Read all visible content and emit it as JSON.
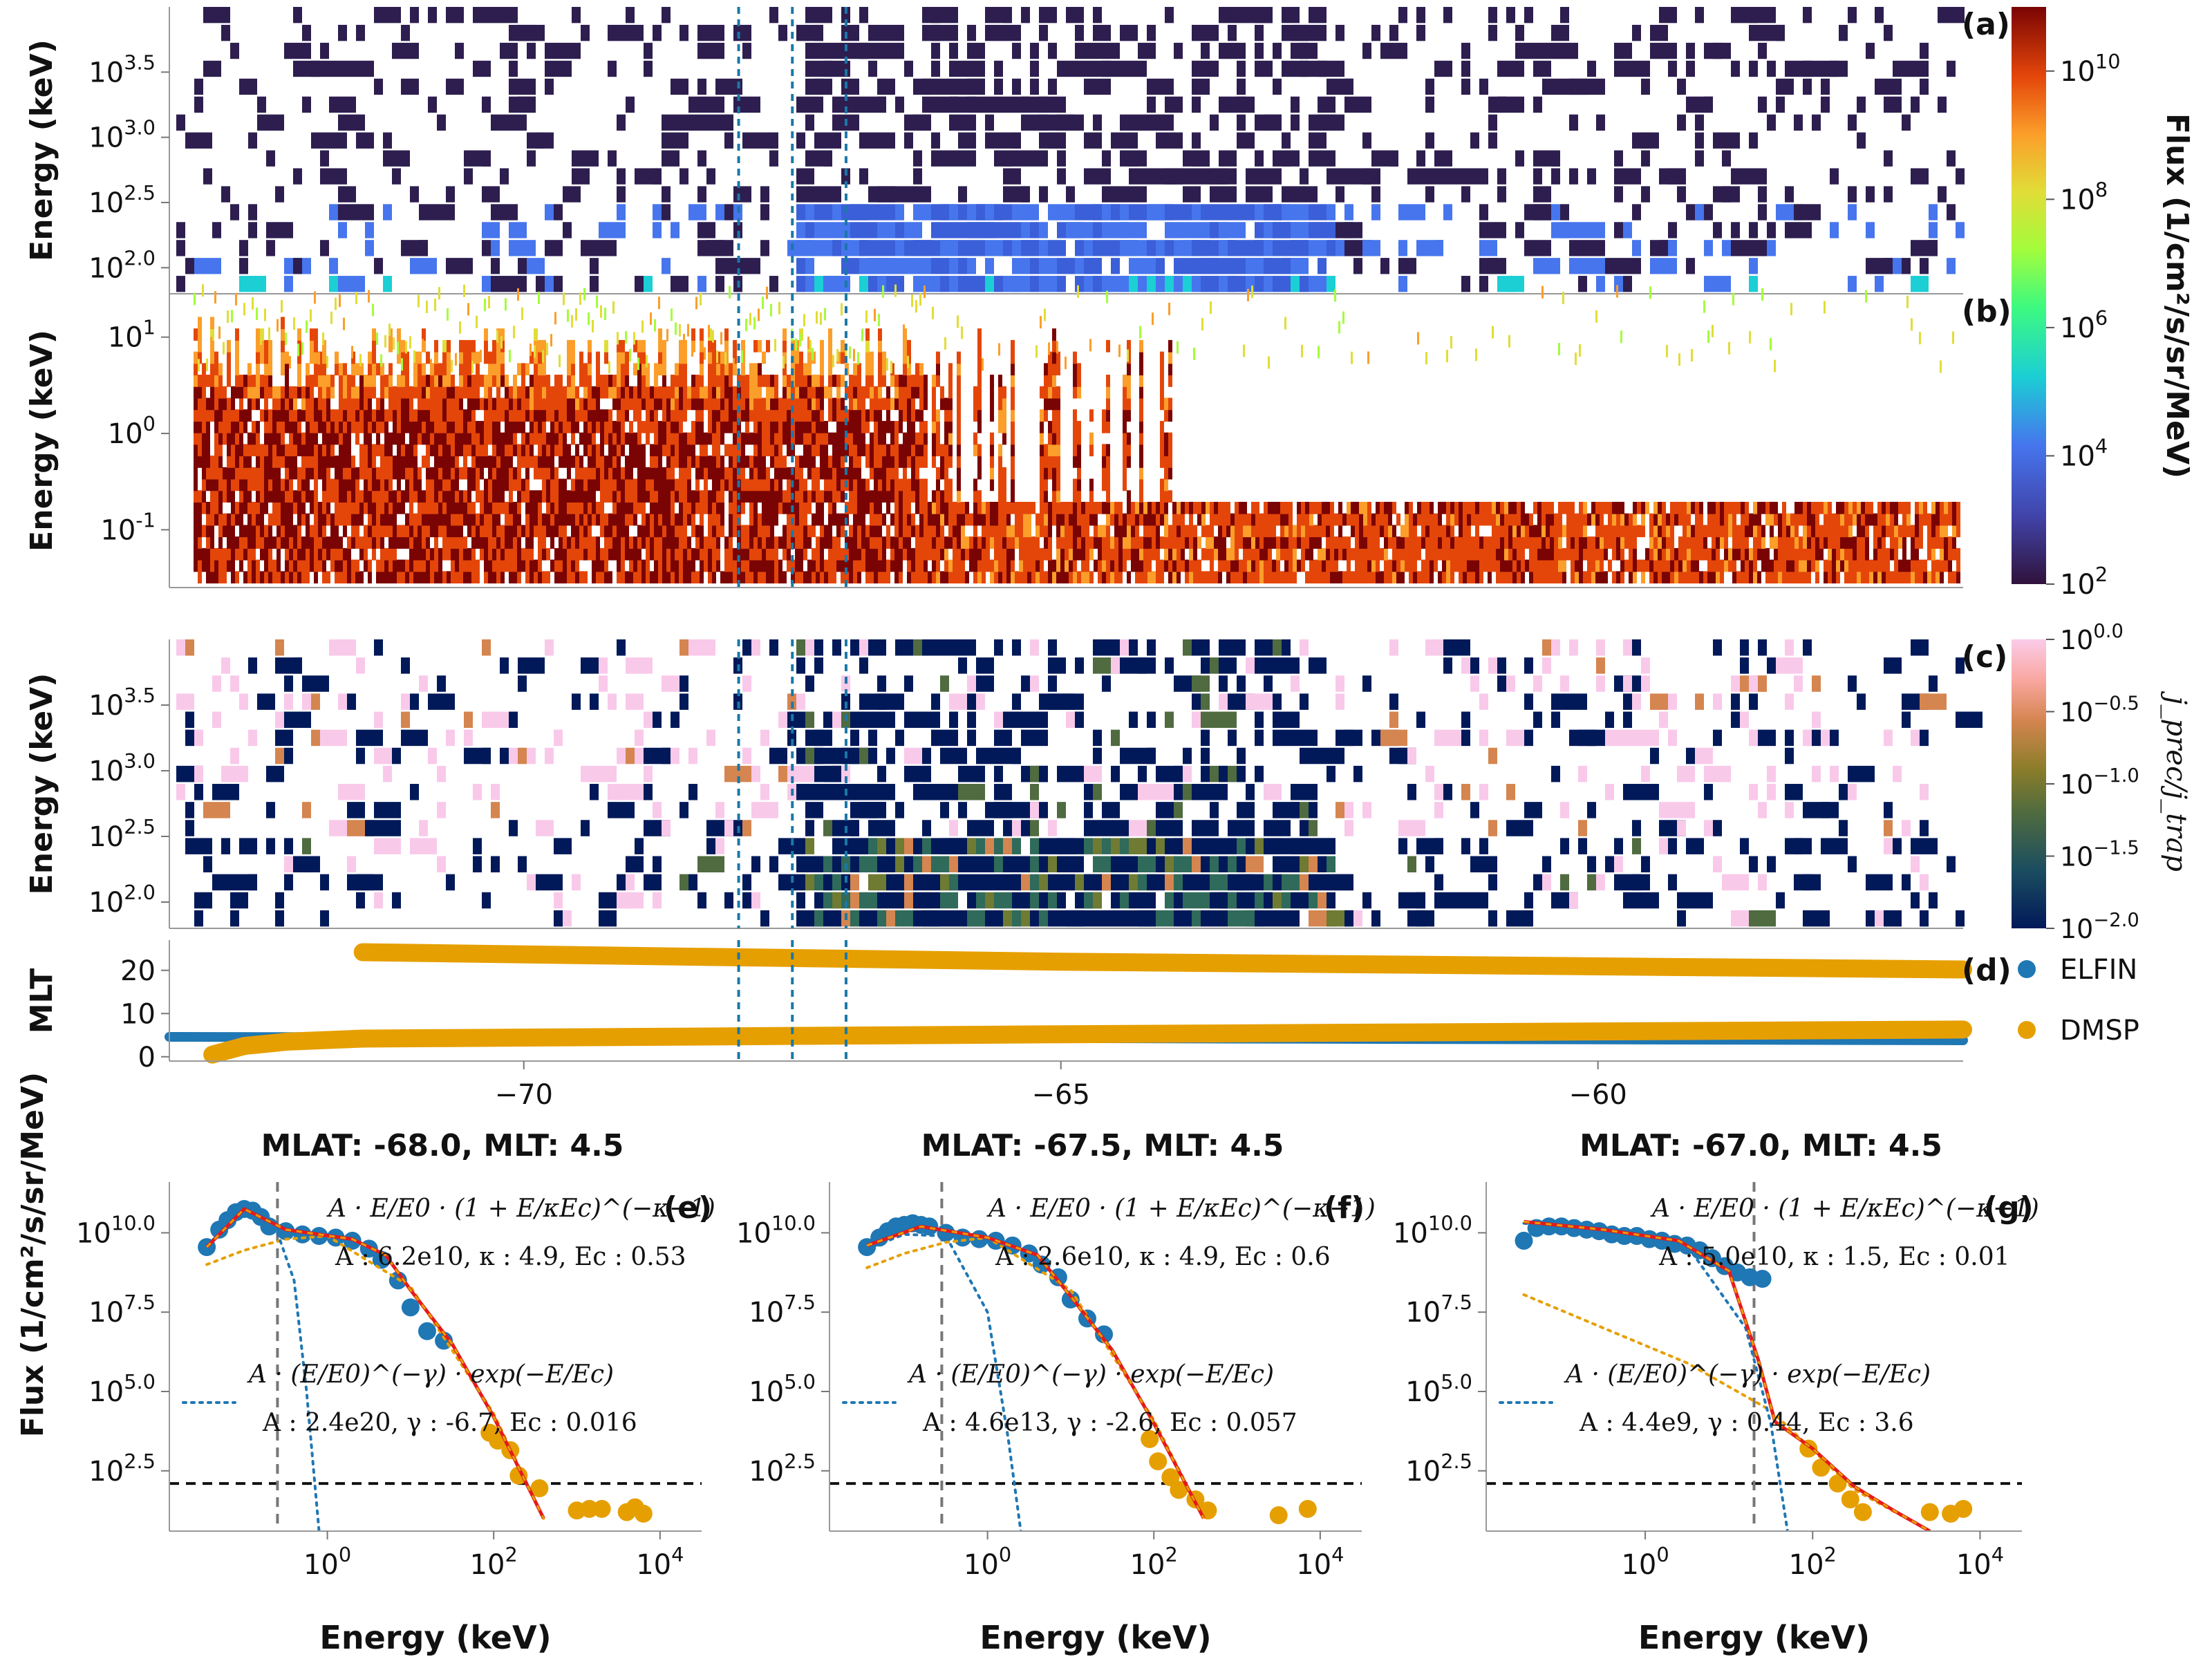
{
  "spectrogram_panels": [
    {
      "id": "a",
      "panel_label": "(a)",
      "ylabel": "Energy (keV)",
      "ytick_labels": [
        "10^3.5",
        "10^3.0",
        "10^2.5",
        "10^2.0"
      ],
      "ytick_values": [
        3.5,
        3.0,
        2.5,
        2.0
      ],
      "ylim_log10": [
        1.8,
        4.0
      ]
    },
    {
      "id": "b",
      "panel_label": "(b)",
      "ylabel": "Energy (keV)",
      "ytick_labels": [
        "10^1",
        "10^0",
        "10^-1"
      ],
      "ytick_values": [
        1,
        0,
        -1
      ],
      "ylim_log10": [
        -1.6,
        1.45
      ]
    },
    {
      "id": "c",
      "panel_label": "(c)",
      "ylabel": "Energy (keV)",
      "ytick_labels": [
        "10^3.5",
        "10^3.0",
        "10^2.5",
        "10^2.0"
      ],
      "ytick_values": [
        3.5,
        3.0,
        2.5,
        2.0
      ],
      "ylim_log10": [
        1.8,
        4.0
      ]
    }
  ],
  "colorbar_flux": {
    "label": "Flux (1/cm²/s/sr/MeV)",
    "tick_labels": [
      "10^10",
      "10^8",
      "10^6",
      "10^4",
      "10^2"
    ],
    "tick_exponents": [
      10,
      8,
      6,
      4,
      2
    ],
    "range_exponents": [
      2,
      11
    ],
    "colormap": "turbo"
  },
  "colorbar_ratio": {
    "label": "j_prec/j_trap",
    "tick_labels": [
      "10^0.0",
      "10^-0.5",
      "10^-1.0",
      "10^-1.5",
      "10^-2.0"
    ],
    "tick_exponents": [
      0,
      -0.5,
      -1.0,
      -1.5,
      -2.0
    ],
    "range_exponents": [
      -2,
      0
    ],
    "colormap": "batlow"
  },
  "mlt_panel": {
    "panel_label": "(d)",
    "ylabel": "MLT",
    "ytick_labels": [
      "20",
      "10",
      "0"
    ],
    "ytick_values": [
      20,
      10,
      0
    ],
    "ylim": [
      -1,
      27
    ],
    "legend": [
      "ELFIN",
      "DMSP"
    ]
  },
  "shared_x": {
    "tick_labels": [
      "-70",
      "-65",
      "-60"
    ],
    "tick_values": [
      -70,
      -65,
      -60
    ],
    "xlim": [
      -73.3,
      -56.6
    ]
  },
  "marked_mlat": [
    -68.0,
    -67.5,
    -67.0
  ],
  "fit_panels": [
    {
      "title": "MLAT: -68.0, MLT: 4.5",
      "panel_label": "(e)",
      "kappa_formula": "A · E/E0 · (1 + E/κEc)^(−κ−1)",
      "kappa_params": "A : 6.2e10, κ : 4.9, Ec : 0.53",
      "power_formula": "A · (E/E0)^(−γ) · exp(−E/Ec)",
      "power_params": "A : 2.4e20, γ : -6.7, Ec : 0.016"
    },
    {
      "title": "MLAT: -67.5, MLT: 4.5",
      "panel_label": "(f)",
      "kappa_formula": "A · E/E0 · (1 + E/κEc)^(−κ−1)",
      "kappa_params": "A : 2.6e10, κ : 4.9, Ec : 0.6",
      "power_formula": "A · (E/E0)^(−γ) · exp(−E/Ec)",
      "power_params": "A : 4.6e13, γ : -2.6, Ec : 0.057"
    },
    {
      "title": "MLAT: -67.0, MLT: 4.5",
      "panel_label": "(g)",
      "kappa_formula": "A · E/E0 · (1 + E/κEc)^(−κ−1)",
      "kappa_params": "A : 5.0e10, κ : 1.5, Ec : 0.01",
      "power_formula": "A · (E/E0)^(−γ) · exp(−E/Ec)",
      "power_params": "A : 4.4e9, γ : 0.44, Ec : 3.6"
    }
  ],
  "fit_axes": {
    "ylabel": "Flux (1/cm²/s/sr/MeV)",
    "xlabel": "Energy (keV)",
    "ytick_labels": [
      "10^10.0",
      "10^7.5",
      "10^5.0",
      "10^2.5"
    ],
    "ytick_values": [
      10.0,
      7.5,
      5.0,
      2.5
    ],
    "xtick_labels": [
      "10^0",
      "10^2",
      "10^4"
    ],
    "xtick_values": [
      0,
      2,
      4
    ],
    "xlim_log10": [
      -1.9,
      4.5
    ],
    "ylim_log10": [
      0.6,
      11.6
    ]
  },
  "chart_data": [
    {
      "type": "heatmap",
      "panel": "(a)",
      "description": "ELFIN precipitating electron flux spectrogram",
      "x_range": [
        -73.3,
        -56.6
      ],
      "y_range_log10_keV": [
        1.8,
        4.0
      ],
      "color": "flux 1e2-1e11, mostly 1e2-1e4"
    },
    {
      "type": "heatmap",
      "panel": "(b)",
      "description": "DMSP electron flux spectrogram",
      "x_range": [
        -73.3,
        -56.6
      ],
      "y_range_log10_keV": [
        -1.6,
        1.45
      ],
      "color": "flux up to ~1e10 below 10 keV"
    },
    {
      "type": "heatmap",
      "panel": "(c)",
      "description": "precipitating to trapped flux ratio",
      "x_range": [
        -73.3,
        -56.6
      ],
      "y_range_log10_keV": [
        1.8,
        4.0
      ],
      "color": "ratio 1e-2 to 1e0"
    },
    {
      "type": "scatter",
      "panel": "(d)",
      "x_range": [
        -73.3,
        -56.6
      ],
      "series": [
        {
          "name": "ELFIN",
          "color": "#1f77b4",
          "x": [
            -73.3,
            -65,
            -56.6
          ],
          "y": [
            4.6,
            4.3,
            3.8
          ]
        },
        {
          "name": "DMSP",
          "color": "#e69f00",
          "x": [
            -72.9,
            -72.6,
            -72.2,
            -71.5,
            -65,
            -56.6
          ],
          "y": [
            0.5,
            2.5,
            3.5,
            4.2,
            5.2,
            6.3
          ]
        },
        {
          "name": "DMSP",
          "color": "#e69f00",
          "x": [
            -71.5,
            -65,
            -56.6
          ],
          "y": [
            24.2,
            22.0,
            20.2
          ]
        }
      ]
    },
    {
      "type": "scatter",
      "panel": "(e)",
      "x_log10_keV": [
        -1.45,
        -1.3,
        -1.2,
        -1.1,
        -1.0,
        -0.9,
        -0.8,
        -0.7,
        -0.5,
        -0.3,
        -0.1,
        0.1,
        0.3,
        0.5,
        0.65,
        0.85,
        1.0,
        1.2,
        1.4,
        1.95,
        2.05,
        2.2,
        2.3,
        2.55,
        3.0,
        3.15,
        3.3,
        3.6,
        3.7,
        3.8
      ],
      "y_log10_flux": [
        9.55,
        10.1,
        10.4,
        10.65,
        10.75,
        10.7,
        10.5,
        10.2,
        10.05,
        9.95,
        9.9,
        9.85,
        9.75,
        9.5,
        9.15,
        8.5,
        7.65,
        6.9,
        6.6,
        3.7,
        3.45,
        3.15,
        2.35,
        1.95,
        1.25,
        1.3,
        1.3,
        1.2,
        1.35,
        1.15
      ],
      "fit_total_log10": [
        [
          -1.45,
          9.55
        ],
        [
          -1.0,
          10.75
        ],
        [
          -0.5,
          10.1
        ],
        [
          0.3,
          9.8
        ],
        [
          0.7,
          9.3
        ],
        [
          1.0,
          8.2
        ],
        [
          1.5,
          6.5
        ],
        [
          2.0,
          4.2
        ],
        [
          2.6,
          1.0
        ]
      ],
      "kappa_component_log10": [
        [
          -1.45,
          9.0
        ],
        [
          -1.0,
          9.45
        ],
        [
          -0.5,
          9.8
        ],
        [
          0.0,
          9.9
        ],
        [
          1.0,
          8.3
        ],
        [
          2.0,
          4.3
        ],
        [
          2.6,
          1.0
        ]
      ],
      "powerlaw_component_log10": [
        [
          -1.45,
          9.6
        ],
        [
          -1.0,
          10.7
        ],
        [
          -0.6,
          10.0
        ],
        [
          -0.4,
          8.5
        ],
        [
          -0.25,
          5.0
        ],
        [
          -0.1,
          0.6
        ]
      ],
      "E0_log10": -0.6,
      "threshold_log10": 2.1
    },
    {
      "type": "scatter",
      "panel": "(f)",
      "x_log10_keV": [
        -1.45,
        -1.3,
        -1.2,
        -1.1,
        -1.0,
        -0.9,
        -0.8,
        -0.7,
        -0.5,
        -0.3,
        -0.1,
        0.1,
        0.3,
        0.5,
        0.65,
        0.85,
        1.0,
        1.2,
        1.4,
        1.95,
        2.05,
        2.2,
        2.3,
        2.5,
        2.65,
        3.5,
        3.85
      ],
      "y_log10_flux": [
        9.55,
        9.85,
        10.05,
        10.2,
        10.25,
        10.3,
        10.25,
        10.2,
        10.0,
        9.85,
        9.8,
        9.75,
        9.6,
        9.35,
        9.0,
        8.6,
        7.9,
        7.3,
        6.8,
        3.5,
        2.8,
        2.3,
        1.9,
        1.6,
        1.25,
        1.1,
        1.3
      ],
      "fit_total_log10": [
        [
          -1.45,
          9.6
        ],
        [
          -0.8,
          10.2
        ],
        [
          0.0,
          9.85
        ],
        [
          0.6,
          9.3
        ],
        [
          1.0,
          8.0
        ],
        [
          1.5,
          6.3
        ],
        [
          2.0,
          4.0
        ],
        [
          2.6,
          1.0
        ]
      ],
      "kappa_component_log10": [
        [
          -1.45,
          8.9
        ],
        [
          -1.0,
          9.35
        ],
        [
          -0.5,
          9.7
        ],
        [
          0.0,
          9.85
        ],
        [
          1.0,
          8.2
        ],
        [
          2.0,
          4.1
        ],
        [
          2.6,
          1.0
        ]
      ],
      "powerlaw_component_log10": [
        [
          -1.45,
          9.5
        ],
        [
          -1.0,
          9.95
        ],
        [
          -0.5,
          9.9
        ],
        [
          0.0,
          7.5
        ],
        [
          0.25,
          3.5
        ],
        [
          0.4,
          0.6
        ]
      ],
      "E0_log10": -0.55,
      "threshold_log10": 2.1
    },
    {
      "type": "scatter",
      "panel": "(g)",
      "x_log10_keV": [
        -1.45,
        -1.3,
        -1.15,
        -1.0,
        -0.85,
        -0.7,
        -0.55,
        -0.4,
        -0.25,
        -0.1,
        0.05,
        0.2,
        0.35,
        0.5,
        0.65,
        0.8,
        0.95,
        1.1,
        1.25,
        1.4,
        1.95,
        2.1,
        2.3,
        2.45,
        2.6,
        3.4,
        3.65,
        3.8
      ],
      "y_log10_flux": [
        9.75,
        10.15,
        10.2,
        10.2,
        10.15,
        10.1,
        10.05,
        9.95,
        9.9,
        9.9,
        9.8,
        9.75,
        9.65,
        9.6,
        9.45,
        9.2,
        8.95,
        8.75,
        8.6,
        8.55,
        3.2,
        2.6,
        2.1,
        1.6,
        1.2,
        1.2,
        1.15,
        1.3
      ],
      "fit_total_log10": [
        [
          -1.45,
          10.35
        ],
        [
          -0.5,
          10.1
        ],
        [
          0.4,
          9.75
        ],
        [
          1.0,
          8.8
        ],
        [
          1.35,
          6.0
        ],
        [
          1.55,
          4.05
        ],
        [
          2.0,
          3.2
        ],
        [
          2.5,
          2.0
        ],
        [
          3.0,
          1.2
        ],
        [
          3.4,
          0.6
        ]
      ],
      "kappa_component_log10": [
        [
          -1.45,
          8.05
        ],
        [
          -0.5,
          7.0
        ],
        [
          0.5,
          5.9
        ],
        [
          1.5,
          4.4
        ],
        [
          2.5,
          1.9
        ],
        [
          3.4,
          0.6
        ]
      ],
      "powerlaw_component_log10": [
        [
          -1.45,
          10.3
        ],
        [
          -0.5,
          10.05
        ],
        [
          0.5,
          9.6
        ],
        [
          1.2,
          7.0
        ],
        [
          1.5,
          4.0
        ],
        [
          1.7,
          0.6
        ]
      ],
      "E0_log10": 1.3,
      "threshold_log10": 2.1
    }
  ]
}
